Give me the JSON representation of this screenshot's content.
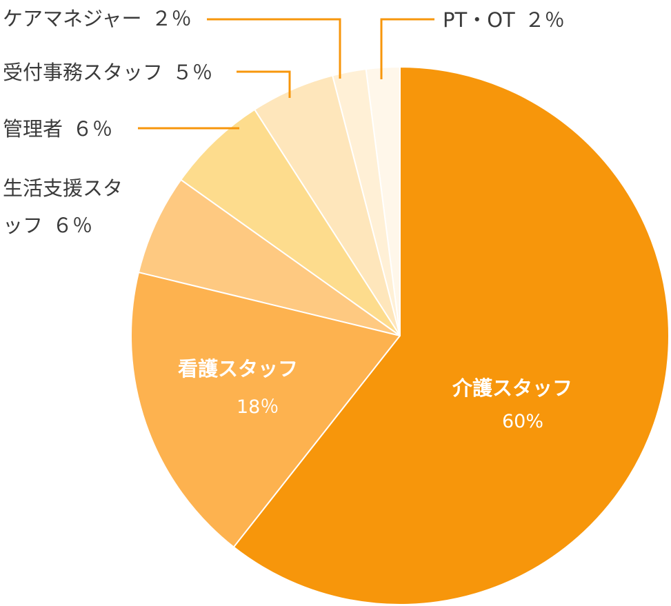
{
  "chart_data": {
    "type": "pie",
    "categories": [
      "介護スタッフ",
      "看護スタッフ",
      "生活支援スタッフ",
      "管理者",
      "受付事務スタッフ",
      "ケアマネジャー",
      "PT・OT"
    ],
    "values": [
      60,
      18,
      6,
      6,
      5,
      2,
      2
    ],
    "value_labels": [
      "60%",
      "18％",
      "６％",
      "６％",
      "５％",
      "２％",
      "２％"
    ],
    "colors": [
      "#f7960b",
      "#fdb24f",
      "#fec981",
      "#fddc8d",
      "#fee6bb",
      "#fff0d6",
      "#fff7ea"
    ]
  }
}
